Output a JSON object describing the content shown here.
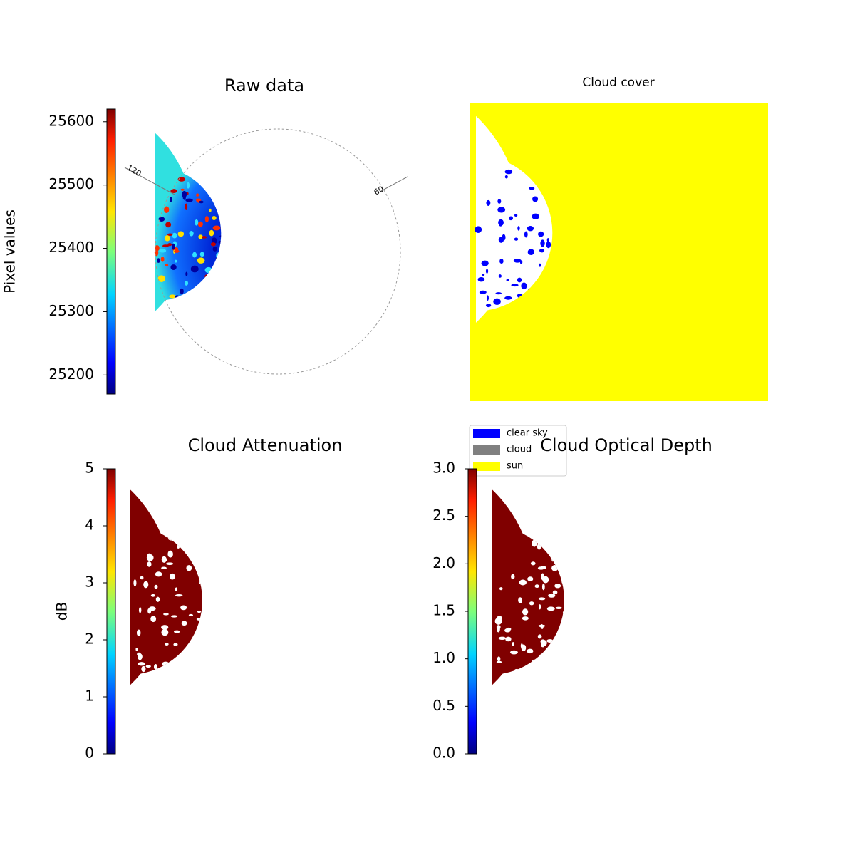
{
  "chart_data": [
    {
      "type": "heatmap",
      "title": "Raw data",
      "colorbar_label": "Pixel values",
      "colormap": "jet",
      "clim": [
        25170,
        25620
      ],
      "ticks": [
        25200,
        25300,
        25400,
        25500,
        25600
      ],
      "annotations": [
        "120",
        "60"
      ]
    },
    {
      "type": "classmap",
      "title": "Cloud cover",
      "legend": [
        {
          "name": "clear sky",
          "color": "#0000ff"
        },
        {
          "name": "cloud",
          "color": "#808080"
        },
        {
          "name": "sun",
          "color": "#ffff00"
        }
      ]
    },
    {
      "type": "heatmap",
      "title": "Cloud Attenuation",
      "colorbar_label": "dB",
      "colormap": "jet",
      "clim": [
        0,
        5
      ],
      "ticks": [
        0,
        1,
        2,
        3,
        4,
        5
      ]
    },
    {
      "type": "heatmap",
      "title": "Cloud Optical Depth",
      "colormap": "jet",
      "clim": [
        0,
        3
      ],
      "ticks": [
        {
          "value": 0,
          "label": "0.0"
        },
        {
          "value": 0.5,
          "label": "0.5"
        },
        {
          "value": 1,
          "label": "1.0"
        },
        {
          "value": 1.5,
          "label": "1.5"
        },
        {
          "value": 2,
          "label": "2.0"
        },
        {
          "value": 2.5,
          "label": "2.5"
        },
        {
          "value": 3,
          "label": "3.0"
        }
      ]
    }
  ]
}
